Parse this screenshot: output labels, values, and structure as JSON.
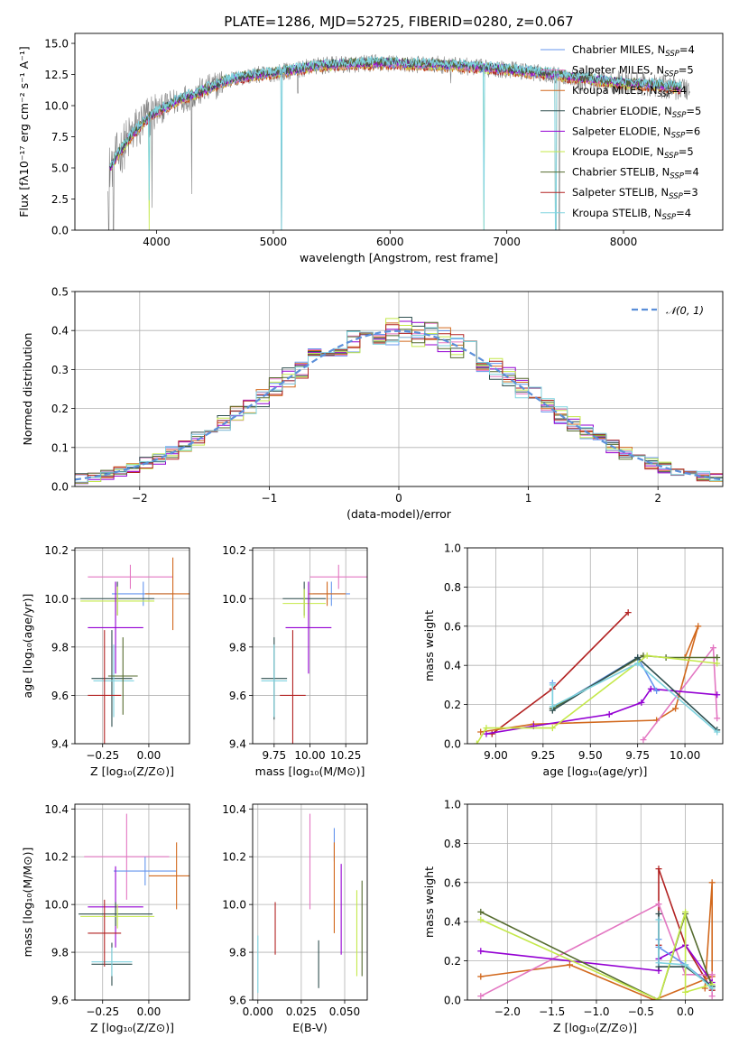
{
  "figure_title": "PLATE=1286, MJD=52725, FIBERID=0280, z=0.067",
  "ssp_models": [
    {
      "label": "Chabrier MILES, N",
      "sub": "SSP",
      "suffix": "=4",
      "color": "#6495ed"
    },
    {
      "label": "Salpeter MILES, N",
      "sub": "SSP",
      "suffix": "=5",
      "color": "#e377c2"
    },
    {
      "label": "Kroupa MILES, N",
      "sub": "SSP",
      "suffix": "=4",
      "color": "#d2691e"
    },
    {
      "label": "Chabrier ELODIE, N",
      "sub": "SSP",
      "suffix": "=5",
      "color": "#2f4f4f"
    },
    {
      "label": "Salpeter ELODIE, N",
      "sub": "SSP",
      "suffix": "=6",
      "color": "#9400d3"
    },
    {
      "label": "Kroupa ELODIE, N",
      "sub": "SSP",
      "suffix": "=5",
      "color": "#c4e84a"
    },
    {
      "label": "Chabrier STELIB, N",
      "sub": "SSP",
      "suffix": "=4",
      "color": "#556b2f"
    },
    {
      "label": "Salpeter STELIB, N",
      "sub": "SSP",
      "suffix": "=3",
      "color": "#b22222"
    },
    {
      "label": "Kroupa STELIB, N",
      "sub": "SSP",
      "suffix": "=4",
      "color": "#7fd3df"
    }
  ],
  "chart_data": [
    {
      "id": "spectrum",
      "type": "line",
      "title": "PLATE=1286, MJD=52725, FIBERID=0280, z=0.067",
      "xlabel": "wavelength [Angstrom, rest frame]",
      "ylabel": "Flux [fλ10⁻¹⁷ erg cm⁻² s⁻¹ A⁻¹]",
      "xlim": [
        3300,
        8850
      ],
      "ylim": [
        0,
        15.8
      ],
      "xticks": [
        4000,
        5000,
        6000,
        7000,
        8000
      ],
      "yticks": [
        0.0,
        2.5,
        5.0,
        7.5,
        10.0,
        12.5,
        15.0
      ],
      "data_color": "#808080",
      "model_color": "#7fd3df",
      "continuum": [
        [
          3600,
          5.0
        ],
        [
          3700,
          6.5
        ],
        [
          3800,
          7.8
        ],
        [
          3900,
          8.8
        ],
        [
          4000,
          9.5
        ],
        [
          4100,
          10.0
        ],
        [
          4200,
          10.5
        ],
        [
          4300,
          10.8
        ],
        [
          4400,
          11.2
        ],
        [
          4500,
          11.6
        ],
        [
          4600,
          12.0
        ],
        [
          4800,
          12.4
        ],
        [
          5000,
          12.6
        ],
        [
          5200,
          12.9
        ],
        [
          5400,
          13.2
        ],
        [
          5600,
          13.3
        ],
        [
          5800,
          13.4
        ],
        [
          6000,
          13.4
        ],
        [
          6200,
          13.3
        ],
        [
          6400,
          13.3
        ],
        [
          6600,
          13.2
        ],
        [
          6800,
          13.0
        ],
        [
          7000,
          12.9
        ],
        [
          7200,
          12.7
        ],
        [
          7400,
          12.5
        ],
        [
          7600,
          12.2
        ],
        [
          7800,
          12.0
        ],
        [
          8000,
          11.8
        ],
        [
          8200,
          11.7
        ],
        [
          8400,
          11.5
        ],
        [
          8600,
          11.3
        ]
      ],
      "data_range": [
        3580,
        8570
      ],
      "model_range": [
        3600,
        8500
      ],
      "data_dips": [
        [
          3590,
          0.0
        ],
        [
          3630,
          0.0
        ],
        [
          3960,
          1.8
        ],
        [
          4300,
          2.9
        ],
        [
          5070,
          0.0
        ],
        [
          5210,
          11.0
        ],
        [
          6520,
          11.8
        ],
        [
          7450,
          0.0
        ]
      ],
      "model_dips": [
        [
          3935,
          2.4
        ],
        [
          5070,
          0.0
        ],
        [
          6805,
          0.0
        ],
        [
          7420,
          0.0
        ]
      ]
    },
    {
      "id": "residual-histogram",
      "type": "line",
      "xlabel": "(data-model)/error",
      "ylabel": "Normed distribution",
      "xlim": [
        -2.5,
        2.5
      ],
      "ylim": [
        0,
        0.5
      ],
      "xticks": [
        -2,
        -1,
        0,
        1,
        2
      ],
      "xticklabels": [
        "−2",
        "−1",
        "0",
        "1",
        "2"
      ],
      "yticks": [
        0.0,
        0.1,
        0.2,
        0.3,
        0.4,
        0.5
      ],
      "bin_width": 0.1,
      "legend": "𝒩(0, 1)",
      "gaussian": {
        "mean": 0,
        "sigma": 1,
        "color": "#5b8fd9"
      }
    },
    {
      "id": "age-vs-Z",
      "type": "scatter",
      "xlabel": "Z [log₁₀(Z/Z⊙)]",
      "ylabel": "age  [log₁₀(age/yr)]",
      "xlim": [
        -0.4,
        0.22
      ],
      "ylim": [
        9.4,
        10.21
      ],
      "xticks": [
        -0.25,
        0.0
      ],
      "xticklabels": [
        "−0.25",
        "0.00"
      ],
      "yticks": [
        9.4,
        9.6,
        9.8,
        10.0,
        10.2
      ],
      "points": [
        {
          "x": -0.1,
          "xerr": 0.23,
          "y": 10.09,
          "yerr": 0.05,
          "color": "#e377c2"
        },
        {
          "x": -0.03,
          "xerr": 0.17,
          "y": 10.02,
          "yerr": 0.05,
          "color": "#6495ed"
        },
        {
          "x": 0.13,
          "xerr": 0.15,
          "y": 10.02,
          "yerr": 0.15,
          "color": "#d2691e"
        },
        {
          "x": -0.17,
          "xerr": 0.2,
          "y": 10.0,
          "yerr": 0.07,
          "color": "#2f4f4f"
        },
        {
          "x": -0.17,
          "xerr": 0.2,
          "y": 9.99,
          "yerr": 0.06,
          "color": "#c4e84a"
        },
        {
          "x": -0.18,
          "xerr": 0.15,
          "y": 9.88,
          "yerr": 0.19,
          "color": "#9400d3"
        },
        {
          "x": -0.2,
          "xerr": 0.11,
          "y": 9.67,
          "yerr": 0.2,
          "color": "#2f4f4f"
        },
        {
          "x": -0.19,
          "xerr": 0.11,
          "y": 9.66,
          "yerr": 0.15,
          "color": "#7fd3df"
        },
        {
          "x": -0.14,
          "xerr": 0.08,
          "y": 9.68,
          "yerr": 0.16,
          "color": "#556b2f"
        },
        {
          "x": -0.24,
          "xerr": 0.09,
          "y": 9.6,
          "yerr": 0.27,
          "color": "#b22222"
        }
      ]
    },
    {
      "id": "age-vs-mass",
      "type": "scatter",
      "xlabel": "mass [log₁₀(M/M⊙)]",
      "ylabel": "",
      "xlim": [
        9.6,
        10.4
      ],
      "ylim": [
        9.4,
        10.21
      ],
      "xticks": [
        9.75,
        10.0,
        10.25
      ],
      "xticklabels": [
        "9.75",
        "10.00",
        "10.25"
      ],
      "yticks": [
        9.4,
        9.6,
        9.8,
        10.0,
        10.2
      ],
      "points": [
        {
          "x": 10.2,
          "xerr": 0.2,
          "y": 10.09,
          "yerr": 0.05,
          "color": "#e377c2"
        },
        {
          "x": 10.15,
          "xerr": 0.13,
          "y": 10.02,
          "yerr": 0.05,
          "color": "#6495ed"
        },
        {
          "x": 10.12,
          "xerr": 0.13,
          "y": 10.02,
          "yerr": 0.05,
          "color": "#d2691e"
        },
        {
          "x": 9.96,
          "xerr": 0.15,
          "y": 10.0,
          "yerr": 0.07,
          "color": "#2f4f4f"
        },
        {
          "x": 9.96,
          "xerr": 0.15,
          "y": 9.98,
          "yerr": 0.06,
          "color": "#c4e84a"
        },
        {
          "x": 9.99,
          "xerr": 0.16,
          "y": 9.88,
          "yerr": 0.19,
          "color": "#9400d3"
        },
        {
          "x": 9.75,
          "xerr": 0.09,
          "y": 9.67,
          "yerr": 0.17,
          "color": "#2f4f4f"
        },
        {
          "x": 9.75,
          "xerr": 0.09,
          "y": 9.66,
          "yerr": 0.15,
          "color": "#7fd3df"
        },
        {
          "x": 9.88,
          "xerr": 0.09,
          "y": 9.6,
          "yerr": 0.27,
          "color": "#b22222"
        }
      ]
    },
    {
      "id": "mass-weight-vs-age",
      "type": "line",
      "xlabel": "age  [log₁₀(age/yr)]",
      "ylabel": "mass weight",
      "xlim": [
        8.85,
        10.2
      ],
      "ylim": [
        0,
        1.0
      ],
      "xticks": [
        9.0,
        9.25,
        9.5,
        9.75,
        10.0
      ],
      "xticklabels": [
        "9.00",
        "9.25",
        "9.50",
        "9.75",
        "10.00"
      ],
      "yticks": [
        0.0,
        0.2,
        0.4,
        0.6,
        0.8,
        1.0
      ],
      "series": [
        {
          "color": "#b22222",
          "x": [
            8.98,
            9.3,
            9.7
          ],
          "y": [
            0.05,
            0.28,
            0.67
          ]
        },
        {
          "color": "#d2691e",
          "x": [
            8.92,
            9.2,
            9.85,
            9.95,
            10.07,
            10.0
          ],
          "y": [
            0.06,
            0.1,
            0.12,
            0.18,
            0.6,
            0.44
          ]
        },
        {
          "color": "#e377c2",
          "x": [
            9.78,
            10.15,
            10.17
          ],
          "y": [
            0.02,
            0.49,
            0.13
          ]
        },
        {
          "color": "#9400d3",
          "x": [
            8.95,
            9.2,
            9.6,
            9.77,
            9.82,
            10.17
          ],
          "y": [
            0.05,
            0.09,
            0.15,
            0.21,
            0.28,
            0.25
          ]
        },
        {
          "color": "#6495ed",
          "x": [
            9.3,
            9.3,
            9.75,
            9.85
          ],
          "y": [
            0.31,
            0.18,
            0.44,
            0.27
          ]
        },
        {
          "color": "#556b2f",
          "x": [
            9.3,
            9.78,
            9.9,
            10.17
          ],
          "y": [
            0.18,
            0.45,
            0.44,
            0.44
          ]
        },
        {
          "color": "#2f4f4f",
          "x": [
            9.3,
            9.75,
            10.17
          ],
          "y": [
            0.17,
            0.44,
            0.07
          ]
        },
        {
          "color": "#c4e84a",
          "x": [
            8.9,
            8.95,
            9.3,
            9.8,
            10.17
          ],
          "y": [
            0.0,
            0.08,
            0.08,
            0.45,
            0.41
          ]
        },
        {
          "color": "#7fd3df",
          "x": [
            9.3,
            9.3,
            9.75,
            10.17
          ],
          "y": [
            0.3,
            0.19,
            0.41,
            0.06
          ]
        }
      ]
    },
    {
      "id": "mass-vs-Z",
      "type": "scatter",
      "xlabel": "Z [log₁₀(Z/Z⊙)]",
      "ylabel": "mass [log₁₀(M/M⊙)]",
      "xlim": [
        -0.4,
        0.22
      ],
      "ylim": [
        9.6,
        10.42
      ],
      "xticks": [
        -0.25,
        0.0
      ],
      "xticklabels": [
        "−0.25",
        "0.00"
      ],
      "yticks": [
        9.6,
        9.8,
        10.0,
        10.2,
        10.4
      ],
      "points": [
        {
          "x": -0.12,
          "xerr": 0.23,
          "y": 10.2,
          "yerr": 0.18,
          "color": "#e377c2"
        },
        {
          "x": -0.02,
          "xerr": 0.17,
          "y": 10.14,
          "yerr": 0.06,
          "color": "#6495ed"
        },
        {
          "x": 0.15,
          "xerr": 0.15,
          "y": 10.12,
          "yerr": 0.14,
          "color": "#d2691e"
        },
        {
          "x": -0.18,
          "xerr": 0.15,
          "y": 9.99,
          "yerr": 0.17,
          "color": "#9400d3"
        },
        {
          "x": -0.18,
          "xerr": 0.2,
          "y": 9.96,
          "yerr": 0.05,
          "color": "#2f4f4f"
        },
        {
          "x": -0.17,
          "xerr": 0.2,
          "y": 9.95,
          "yerr": 0.05,
          "color": "#c4e84a"
        },
        {
          "x": -0.2,
          "xerr": 0.11,
          "y": 9.75,
          "yerr": 0.09,
          "color": "#2f4f4f"
        },
        {
          "x": -0.2,
          "xerr": 0.11,
          "y": 9.76,
          "yerr": 0.06,
          "color": "#7fd3df"
        },
        {
          "x": -0.24,
          "xerr": 0.09,
          "y": 9.88,
          "yerr": 0.14,
          "color": "#b22222"
        }
      ]
    },
    {
      "id": "mass-vs-EBV",
      "type": "scatter",
      "xlabel": "E(B-V)",
      "ylabel": "",
      "xlim": [
        -0.003,
        0.063
      ],
      "ylim": [
        9.6,
        10.42
      ],
      "xticks": [
        0.0,
        0.025,
        0.05
      ],
      "xticklabels": [
        "0.000",
        "0.025",
        "0.050"
      ],
      "yticks": [
        9.6,
        9.8,
        10.0,
        10.2,
        10.4
      ],
      "points": [
        {
          "x": 0.0,
          "y": 9.75,
          "yerr": 0.12,
          "color": "#7fd3df"
        },
        {
          "x": 0.01,
          "y": 9.9,
          "yerr": 0.11,
          "color": "#b22222"
        },
        {
          "x": 0.03,
          "y": 10.18,
          "yerr": 0.2,
          "color": "#e377c2"
        },
        {
          "x": 0.035,
          "y": 9.75,
          "yerr": 0.1,
          "color": "#2f4f4f"
        },
        {
          "x": 0.044,
          "y": 10.25,
          "yerr": 0.07,
          "color": "#6495ed"
        },
        {
          "x": 0.044,
          "y": 10.07,
          "yerr": 0.19,
          "color": "#d2691e"
        },
        {
          "x": 0.048,
          "y": 9.98,
          "yerr": 0.19,
          "color": "#9400d3"
        },
        {
          "x": 0.057,
          "y": 9.88,
          "yerr": 0.18,
          "color": "#c4e84a"
        },
        {
          "x": 0.06,
          "y": 9.9,
          "yerr": 0.2,
          "color": "#556b2f"
        }
      ]
    },
    {
      "id": "mass-weight-vs-Z",
      "type": "line",
      "xlabel": "Z [log₁₀(Z/Z⊙)]",
      "ylabel": "mass weight",
      "xlim": [
        -2.45,
        0.42
      ],
      "ylim": [
        0,
        1.0
      ],
      "xticks": [
        -2.0,
        -1.5,
        -1.0,
        -0.5,
        0.0
      ],
      "xticklabels": [
        "−2.0",
        "−1.5",
        "−1.0",
        "−0.5",
        "0.0"
      ],
      "yticks": [
        0.0,
        0.2,
        0.4,
        0.6,
        0.8,
        1.0
      ],
      "series": [
        {
          "color": "#b22222",
          "x": [
            -0.3,
            -0.3,
            0.0,
            0.3,
            0.3
          ],
          "y": [
            0.28,
            0.67,
            0.28,
            0.05,
            0.05
          ]
        },
        {
          "color": "#d2691e",
          "x": [
            -2.3,
            -1.3,
            -0.35,
            0.3,
            0.3,
            0.22
          ],
          "y": [
            0.12,
            0.18,
            0.0,
            0.12,
            0.6,
            0.06
          ]
        },
        {
          "color": "#e377c2",
          "x": [
            -2.3,
            -0.3,
            0.0,
            0.3,
            0.3
          ],
          "y": [
            0.02,
            0.49,
            0.13,
            0.13,
            0.02
          ]
        },
        {
          "color": "#9400d3",
          "x": [
            -2.3,
            -0.3,
            -0.3,
            0.0,
            0.3
          ],
          "y": [
            0.25,
            0.15,
            0.21,
            0.28,
            0.09
          ]
        },
        {
          "color": "#6495ed",
          "x": [
            -0.3,
            -0.3,
            0.0,
            0.3
          ],
          "y": [
            0.31,
            0.27,
            0.18,
            0.07
          ]
        },
        {
          "color": "#556b2f",
          "x": [
            -2.3,
            -0.3,
            0.0,
            0.3
          ],
          "y": [
            0.45,
            0.0,
            0.44,
            0.07
          ]
        },
        {
          "color": "#2f4f4f",
          "x": [
            -0.3,
            -0.3,
            0.0,
            0.3
          ],
          "y": [
            0.44,
            0.17,
            0.17,
            0.07
          ]
        },
        {
          "color": "#c4e84a",
          "x": [
            -2.3,
            -0.3,
            0.0,
            0.0,
            0.3
          ],
          "y": [
            0.41,
            0.0,
            0.45,
            0.04,
            0.08
          ]
        },
        {
          "color": "#7fd3df",
          "x": [
            -0.3,
            -0.3,
            0.0,
            0.3
          ],
          "y": [
            0.41,
            0.19,
            0.18,
            0.06
          ]
        }
      ]
    }
  ]
}
